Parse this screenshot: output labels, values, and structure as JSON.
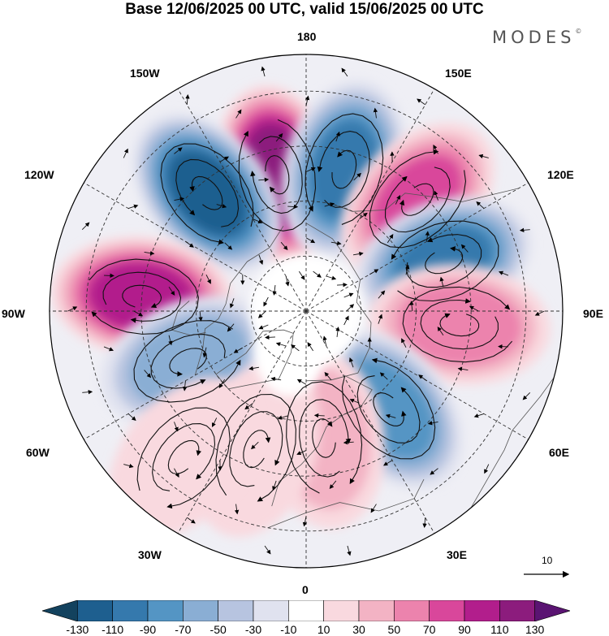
{
  "title": "Base 12/06/2025 00 UTC, valid 15/06/2025 00 UTC",
  "brand": "MODES",
  "brand_mark": "©",
  "longitude_labels": {
    "top": "180",
    "bottom": "0",
    "left": "90W",
    "right": "90E",
    "w150": "150W",
    "e150": "150E",
    "w120": "120W",
    "e120": "120E",
    "w60": "60W",
    "e60": "60E",
    "w30": "30W",
    "e30": "30E"
  },
  "reference_vector": {
    "label": "10"
  },
  "colorbar": {
    "tick_labels": [
      "-130",
      "-110",
      "-90",
      "-70",
      "-50",
      "-30",
      "-10",
      "10",
      "30",
      "50",
      "70",
      "90",
      "110",
      "130"
    ],
    "colors": [
      "#13425e",
      "#1e5f8f",
      "#3579ad",
      "#5495c4",
      "#8aaed4",
      "#b7c4e0",
      "#e0e2ef",
      "#ffffff",
      "#f9d9df",
      "#f3b3c4",
      "#ec83ad",
      "#d9479b",
      "#b21e8c",
      "#8c1c7d",
      "#5a1472"
    ]
  },
  "anomaly_centers": [
    {
      "name": "w165-positive",
      "lon": -168,
      "lat": 52,
      "value": 130
    },
    {
      "name": "w140-negative",
      "lon": -140,
      "lat": 48,
      "value": -120
    },
    {
      "name": "e165-negative",
      "lon": 165,
      "lat": 50,
      "value": -100
    },
    {
      "name": "e135-positive",
      "lon": 135,
      "lat": 47,
      "value": 80
    },
    {
      "name": "e110-negative",
      "lon": 110,
      "lat": 50,
      "value": -100
    },
    {
      "name": "e85-positive",
      "lon": 85,
      "lat": 48,
      "value": 70
    },
    {
      "name": "w95-positive",
      "lon": -95,
      "lat": 45,
      "value": 110
    },
    {
      "name": "w65-negative",
      "lon": -67,
      "lat": 55,
      "value": -70
    },
    {
      "name": "e40-negative",
      "lon": 40,
      "lat": 55,
      "value": -90
    },
    {
      "name": "e10-positive",
      "lon": 8,
      "lat": 55,
      "value": 50
    },
    {
      "name": "w20-positive",
      "lon": -20,
      "lat": 50,
      "value": 35
    },
    {
      "name": "w40-positive",
      "lon": -40,
      "lat": 38,
      "value": 25
    }
  ]
}
